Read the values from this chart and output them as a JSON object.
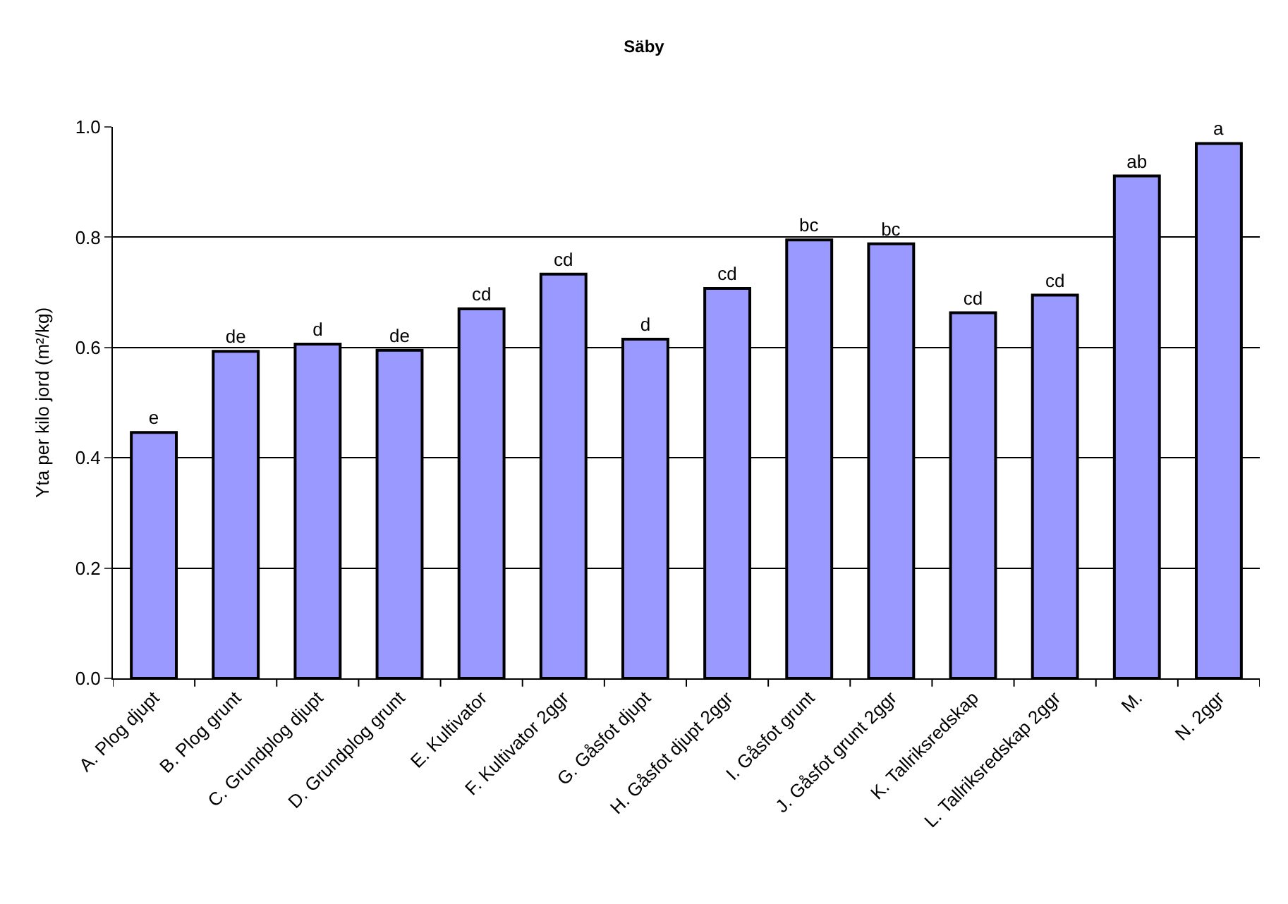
{
  "chart_data": {
    "type": "bar",
    "title": "Säby",
    "ylabel": "Yta per kilo jord (m²/kg)",
    "categories": [
      "A. Plog djupt",
      "B. Plog grunt",
      "C. Grundplog djupt",
      "D. Grundplog grunt",
      "E. Kultivator",
      "F. Kultivator 2ggr",
      "G. Gåsfot djupt",
      "H. Gåsfot djupt 2ggr",
      "I. Gåsfot grunt",
      "J. Gåsfot grunt 2ggr",
      "K. Tallriksredskap",
      "L. Tallriksredskap 2ggr",
      "M.",
      "N. 2ggr"
    ],
    "values": [
      0.446,
      0.593,
      0.606,
      0.595,
      0.67,
      0.733,
      0.615,
      0.707,
      0.795,
      0.788,
      0.663,
      0.695,
      0.911,
      0.97
    ],
    "value_labels": [
      "e",
      "de",
      "d",
      "de",
      "cd",
      "cd",
      "d",
      "cd",
      "bc",
      "bc",
      "cd",
      "cd",
      "ab",
      "a"
    ],
    "color": "#9999ff",
    "ylim": [
      0,
      1
    ],
    "yticks": [
      {
        "value": 0,
        "label": "0.0"
      },
      0.2,
      0.4,
      0.6,
      0.8,
      {
        "value": 1,
        "label": "1.0"
      }
    ],
    "grid": "y",
    "legend": false
  }
}
